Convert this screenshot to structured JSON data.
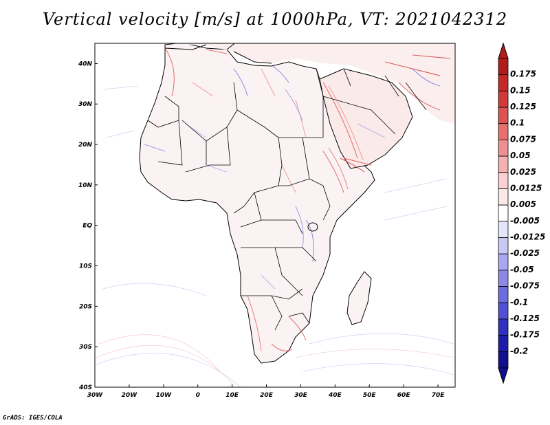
{
  "title": "Vertical velocity [m/s] at 1000hPa, VT: 2021042312",
  "credit": "GrADS: IGES/COLA",
  "map": {
    "lon_range": [
      -30,
      75
    ],
    "lat_range": [
      -40,
      45
    ],
    "lon_ticks": [
      "30W",
      "20W",
      "10W",
      "0",
      "10E",
      "20E",
      "30E",
      "40E",
      "50E",
      "60E",
      "70E"
    ],
    "lat_ticks": [
      "40N",
      "30N",
      "20N",
      "10N",
      "EQ",
      "10S",
      "20S",
      "30S",
      "40S"
    ]
  },
  "colorbar": {
    "labels": [
      "0.175",
      "0.15",
      "0.125",
      "0.1",
      "0.075",
      "0.05",
      "0.025",
      "0.0125",
      "0.005",
      "-0.005",
      "-0.0125",
      "-0.025",
      "-0.05",
      "-0.075",
      "-0.1",
      "-0.125",
      "-0.175",
      "-0.2"
    ],
    "colors": [
      "#b01c1c",
      "#c42828",
      "#d23a3a",
      "#de5252",
      "#e67070",
      "#ee9090",
      "#f5b0b0",
      "#fad0d0",
      "#fde8e8",
      "#ffffff",
      "#e4e4fa",
      "#c8c8f5",
      "#a8a8ee",
      "#8a8ae6",
      "#6c6cde",
      "#5050d2",
      "#3030c0",
      "#1c1ca8",
      "#10108c"
    ]
  }
}
